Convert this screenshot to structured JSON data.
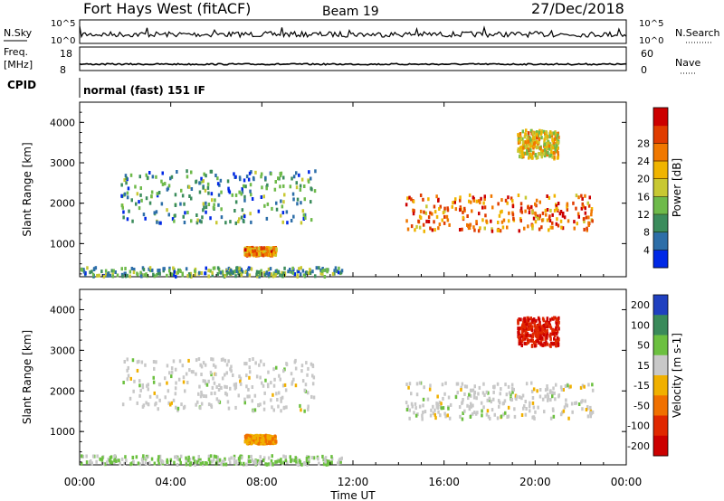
{
  "header": {
    "site": "Fort Hays West (fitACF)",
    "beam": "Beam 19",
    "date": "27/Dec/2018"
  },
  "noise_panel": {
    "left_label": "N.Sky",
    "right_label": "N.Search",
    "top_tick": "10^5",
    "bottom_tick": "10^0"
  },
  "freq_panel": {
    "left_label_1": "Freq.",
    "left_label_2": "[MHz]",
    "left_top_tick": "18",
    "left_bottom_tick": "8",
    "right_label": "Nave",
    "right_top_tick": "60",
    "right_bottom_tick": "0"
  },
  "cpid": {
    "label": "CPID",
    "mode": "normal (fast) 151 IF"
  },
  "chart_data": [
    {
      "type": "heatmap",
      "name_key": "power",
      "ylabel": "Slant Range [km]",
      "colorbar_label": "Power [dB]",
      "ylim": [
        180,
        4500
      ],
      "yticks": [
        1000,
        2000,
        3000,
        4000
      ],
      "xlim": [
        0,
        24
      ],
      "x_ticks": [
        "00:00",
        "04:00",
        "08:00",
        "12:00",
        "16:00",
        "20:00",
        "00:00"
      ],
      "colorbar_ticks": [
        "4",
        "8",
        "12",
        "16",
        "20",
        "24",
        "28"
      ],
      "colors": [
        "#0028e6",
        "#2d6ea8",
        "#3b8c5c",
        "#6eba4a",
        "#c8c832",
        "#f0b400",
        "#f07800",
        "#e03c00",
        "#cc0000"
      ],
      "features": [
        {
          "x0": 1.8,
          "x1": 10.3,
          "y0": 1500,
          "y1": 2800,
          "value": 9
        },
        {
          "x0": 7.2,
          "x1": 8.6,
          "y0": 700,
          "y1": 900,
          "value": 22
        },
        {
          "x0": 14.3,
          "x1": 22.5,
          "y0": 1300,
          "y1": 2200,
          "value": 24
        },
        {
          "x0": 19.2,
          "x1": 21.0,
          "y0": 3100,
          "y1": 3800,
          "value": 18
        },
        {
          "x0": 0.0,
          "x1": 11.5,
          "y0": 180,
          "y1": 400,
          "value": 10
        }
      ]
    },
    {
      "type": "heatmap",
      "name_key": "velocity",
      "ylabel": "Slant Range [km]",
      "xlabel": "Time UT",
      "colorbar_label": "Velocity [m s-1]",
      "ylim": [
        180,
        4500
      ],
      "yticks": [
        1000,
        2000,
        3000,
        4000
      ],
      "xlim": [
        0,
        24
      ],
      "x_ticks": [
        "00:00",
        "04:00",
        "08:00",
        "12:00",
        "16:00",
        "20:00",
        "00:00"
      ],
      "colorbar_ticks": [
        "200",
        "100",
        "50",
        "15",
        "-15",
        "-50",
        "-100",
        "-200"
      ],
      "colors": [
        "#2040c0",
        "#3a8a5a",
        "#6cc040",
        "#c8c8c8",
        "#f0b000",
        "#f07000",
        "#e02800",
        "#cc0000"
      ],
      "features": [
        {
          "x0": 1.8,
          "x1": 10.3,
          "y0": 1500,
          "y1": 2800,
          "value": 0
        },
        {
          "x0": 7.2,
          "x1": 8.6,
          "y0": 700,
          "y1": 900,
          "value": -40
        },
        {
          "x0": 14.3,
          "x1": 22.5,
          "y0": 1300,
          "y1": 2200,
          "value": 0
        },
        {
          "x0": 19.2,
          "x1": 21.0,
          "y0": 3100,
          "y1": 3800,
          "value": -180
        },
        {
          "x0": 0.0,
          "x1": 11.5,
          "y0": 180,
          "y1": 400,
          "value": 20
        }
      ]
    }
  ]
}
